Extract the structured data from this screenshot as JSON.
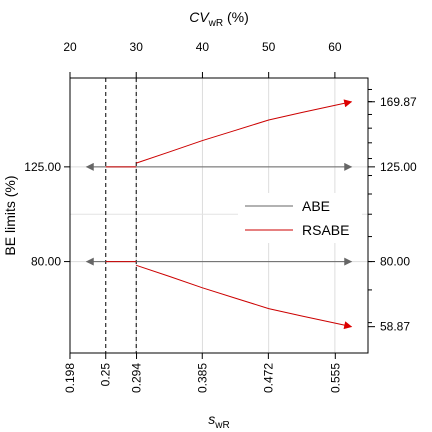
{
  "chart_data": {
    "type": "line",
    "top_axis": {
      "label_main": "CV",
      "label_sub": "wR",
      "label_unit": " (%)",
      "ticks": [
        20,
        30,
        40,
        50,
        60
      ],
      "tick_labels": [
        "20",
        "30",
        "40",
        "50",
        "60"
      ]
    },
    "bottom_axis": {
      "label_main": "s",
      "label_sub": "wR",
      "ticks": [
        0.198,
        0.25,
        0.294,
        0.385,
        0.472,
        0.555
      ],
      "tick_labels": [
        "0.198",
        "0.25",
        "0.294",
        "0.385",
        "0.472",
        "0.555"
      ]
    },
    "left_axis": {
      "label": "BE limits (%)",
      "ticks": [
        80,
        125
      ],
      "tick_labels": [
        "80.00",
        "125.00"
      ]
    },
    "right_axis": {
      "ticks": [
        58.87,
        80,
        125,
        169.87
      ],
      "tick_labels": [
        "58.87",
        "80.00",
        "125.00",
        "169.87"
      ]
    },
    "xlim_cv": [
      20,
      65
    ],
    "ylim_log": [
      52,
      190
    ],
    "grid": true,
    "vlines_cv": [
      25.4,
      30
    ],
    "series": [
      {
        "name": "ABE",
        "color": "#666666",
        "segments": [
          {
            "x": [
              25.4,
              22.5
            ],
            "y": [
              125,
              125
            ],
            "arrow": true
          },
          {
            "x": [
              25.4,
              62.5
            ],
            "y": [
              125,
              125
            ],
            "arrow": true
          },
          {
            "x": [
              25.4,
              22.5
            ],
            "y": [
              80,
              80
            ],
            "arrow": true
          },
          {
            "x": [
              25.4,
              62.5
            ],
            "y": [
              80,
              80
            ],
            "arrow": true
          }
        ]
      },
      {
        "name": "RSABE",
        "color": "#cc0000",
        "segments": [
          {
            "x": [
              25.4,
              30
            ],
            "y": [
              125,
              125
            ],
            "arrow": false
          },
          {
            "x": [
              30,
              35,
              40,
              45,
              50,
              55,
              62.5
            ],
            "y": [
              127.2,
              134.1,
              141.5,
              148.5,
              155.9,
              161.5,
              169.87
            ],
            "arrow": true
          },
          {
            "x": [
              25.4,
              30
            ],
            "y": [
              80,
              80
            ],
            "arrow": false
          },
          {
            "x": [
              30,
              35,
              40,
              45,
              50,
              55,
              62.5
            ],
            "y": [
              78.6,
              74.6,
              70.7,
              67.3,
              64.1,
              61.9,
              58.87
            ],
            "arrow": true
          }
        ]
      }
    ],
    "legend_position": "center-right"
  }
}
